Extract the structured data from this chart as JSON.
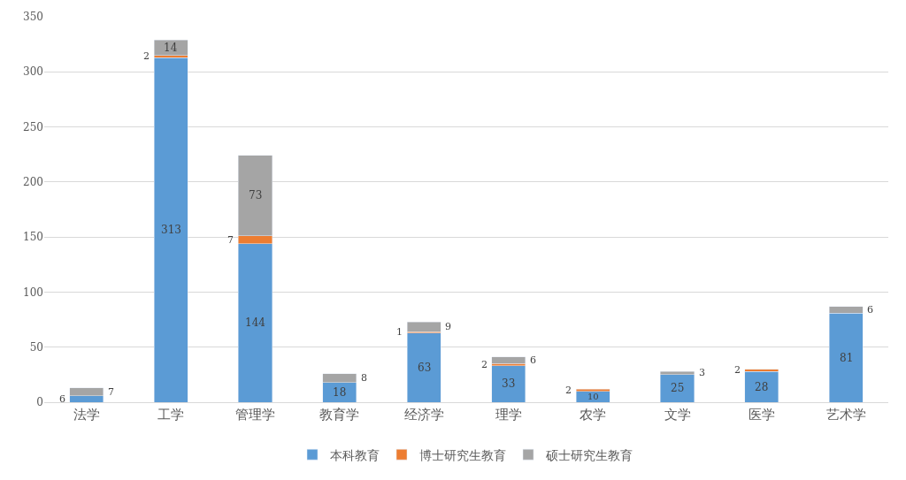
{
  "chart_data": {
    "type": "bar",
    "stacked": true,
    "categories": [
      "法学",
      "工学",
      "管理学",
      "教育学",
      "经济学",
      "理学",
      "农学",
      "文学",
      "医学",
      "艺术学"
    ],
    "series": [
      {
        "name": "本科教育",
        "color": "#5b9bd5",
        "values": [
          6,
          313,
          144,
          18,
          63,
          33,
          10,
          25,
          28,
          81
        ]
      },
      {
        "name": "博士研究生教育",
        "color": "#ed7d31",
        "values": [
          null,
          2,
          7,
          null,
          1,
          2,
          2,
          null,
          2,
          null
        ]
      },
      {
        "name": "硕士研究生教育",
        "color": "#a5a5a5",
        "values": [
          7,
          14,
          73,
          8,
          9,
          6,
          null,
          3,
          null,
          6
        ]
      }
    ],
    "ylim": [
      0,
      350
    ],
    "yticks": [
      0,
      50,
      100,
      150,
      200,
      250,
      300,
      350
    ],
    "grid": "y",
    "legend": "bottom",
    "data_labels": true
  }
}
